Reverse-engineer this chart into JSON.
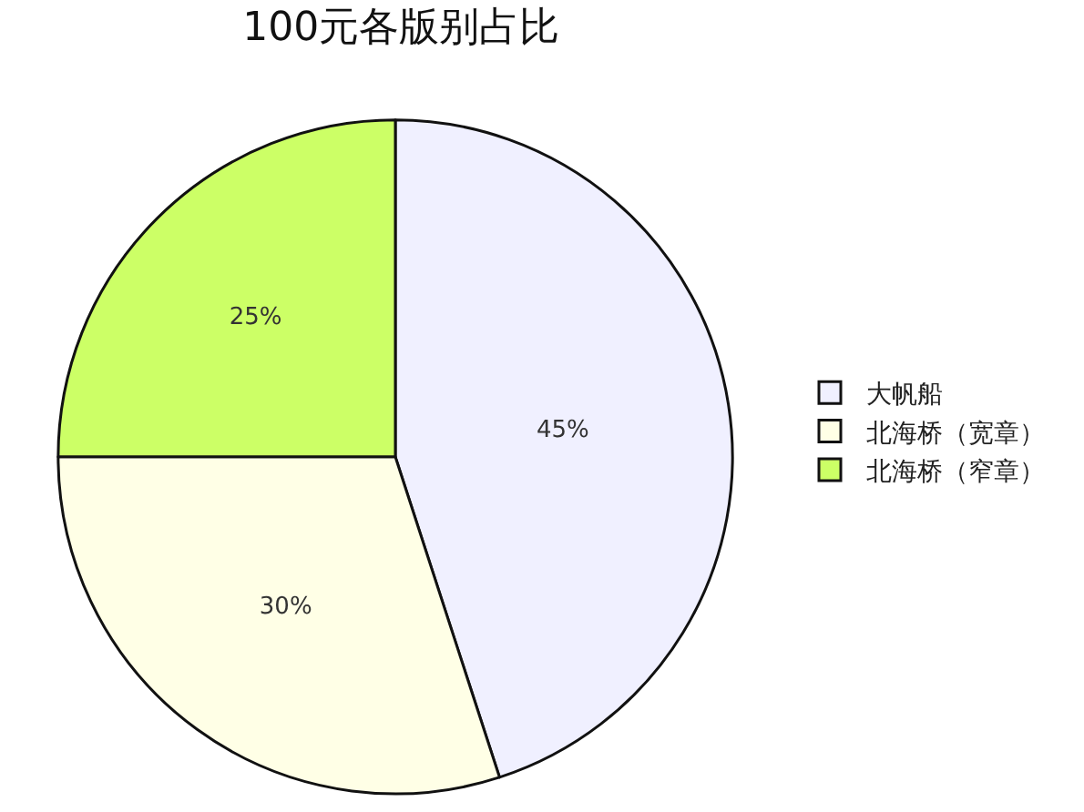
{
  "chart_data": {
    "type": "pie",
    "title": "100元各版别占比",
    "categories": [
      "大帆船",
      "北海桥（宽章）",
      "北海桥（窄章）"
    ],
    "values": [
      45,
      30,
      25
    ],
    "value_labels": [
      "45%",
      "30%",
      "25%"
    ],
    "colors": [
      "#f0f0ff",
      "#ffffe6",
      "#ccff66"
    ],
    "legend": "right"
  }
}
